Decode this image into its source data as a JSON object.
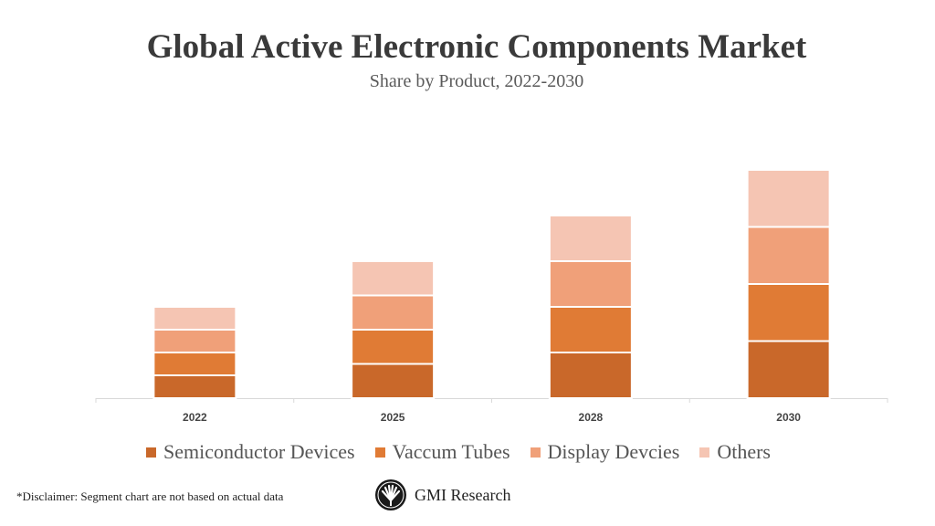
{
  "chart_data": {
    "type": "bar",
    "stacked": true,
    "title": "Global Active Electronic Components Market",
    "subtitle": "Share by Product, 2022-2030",
    "categories": [
      "2022",
      "2025",
      "2028",
      "2030"
    ],
    "series": [
      {
        "name": "Semiconductor Devices",
        "values": [
          20,
          30,
          40,
          50
        ],
        "color": "#C9682A"
      },
      {
        "name": "Vaccum Tubes",
        "values": [
          20,
          30,
          40,
          50
        ],
        "color": "#E07B35"
      },
      {
        "name": "Display Devcies",
        "values": [
          20,
          30,
          40,
          50
        ],
        "color": "#F0A079"
      },
      {
        "name": "Others",
        "values": [
          20,
          30,
          40,
          50
        ],
        "color": "#F5C5B3"
      }
    ],
    "ylim": [
      0,
      240
    ],
    "y_axis_visible": false,
    "grid": false,
    "legend": "bottom"
  },
  "footer": {
    "disclaimer": "*Disclaimer:  Segment chart are not based on actual data",
    "logo_text": "GMI Research"
  }
}
